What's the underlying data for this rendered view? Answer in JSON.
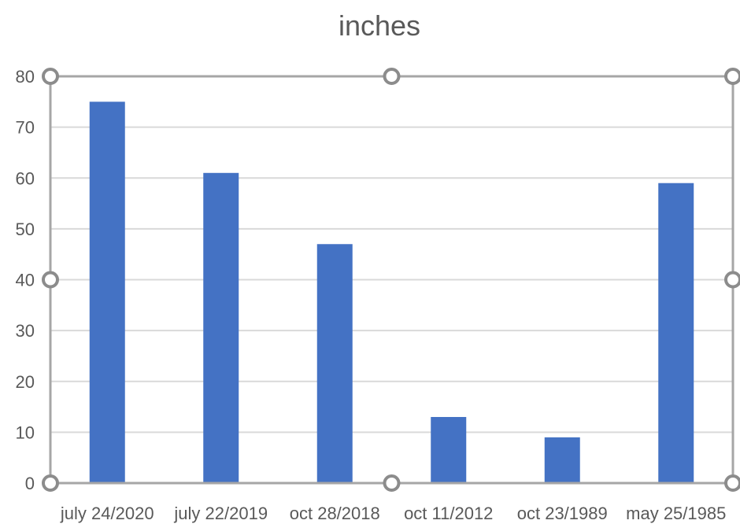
{
  "chart_data": {
    "type": "bar",
    "title": "inches",
    "categories": [
      "july 24/2020",
      "july 22/2019",
      "oct 28/2018",
      "oct 11/2012",
      "oct 23/1989",
      "may 25/1985"
    ],
    "values": [
      75,
      61,
      47,
      13,
      9,
      59
    ],
    "y_ticks": [
      "0",
      "10",
      "20",
      "30",
      "40",
      "50",
      "60",
      "70",
      "80"
    ],
    "ylim": [
      0,
      80
    ],
    "grid": true,
    "legend": "none",
    "bar_color": "#4472c4"
  }
}
